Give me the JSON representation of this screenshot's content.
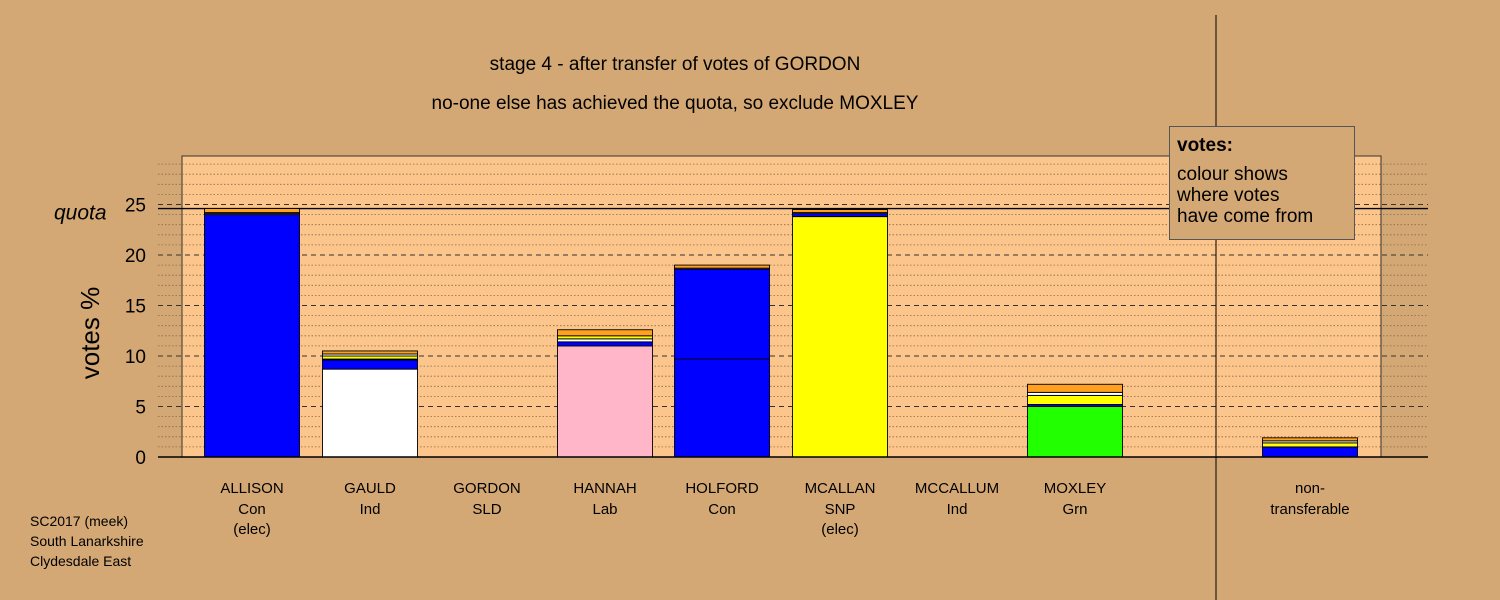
{
  "title_lines": [
    "stage 4 - after transfer of votes of GORDON",
    "no-one else has achieved the quota, so exclude MOXLEY"
  ],
  "legend": {
    "title": "votes:",
    "lines": [
      "colour shows",
      "where votes",
      "have come from"
    ]
  },
  "footer": {
    "lines": [
      "SC2017 (meek)",
      "South Lanarkshire",
      "Clydesdale East"
    ]
  },
  "colors": {
    "background": "#D4A874",
    "plot_area": "#FBC58C",
    "Con": "#0000FF",
    "Ind": "#FFFFFF",
    "Lab": "#FFB6C8",
    "SNP": "#FFFF00",
    "Grn": "#22FF00",
    "SLD": "#FFA01E",
    "nontransferable": "#0000FF"
  },
  "chart_data": {
    "type": "bar",
    "stacked": true,
    "ylabel": "votes %",
    "ylim": [
      0,
      29.5
    ],
    "yticks": [
      0,
      5,
      10,
      15,
      20,
      25
    ],
    "quota": 24.6,
    "quota_label": "quota",
    "grid": true,
    "legend_position": "top-right",
    "categories": [
      {
        "name": "ALLISON",
        "party": "Con",
        "note": "(elec)"
      },
      {
        "name": "GAULD",
        "party": "Ind",
        "note": ""
      },
      {
        "name": "GORDON",
        "party": "SLD",
        "note": ""
      },
      {
        "name": "HANNAH",
        "party": "Lab",
        "note": ""
      },
      {
        "name": "HOLFORD",
        "party": "Con",
        "note": ""
      },
      {
        "name": "MCALLAN",
        "party": "SNP",
        "note": "(elec)"
      },
      {
        "name": "MCCALLUM",
        "party": "Ind",
        "note": ""
      },
      {
        "name": "MOXLEY",
        "party": "Grn",
        "note": ""
      },
      {
        "name": "non-",
        "party": "transferable",
        "note": ""
      }
    ],
    "bars": [
      {
        "segments": [
          {
            "source": "Con",
            "value": 24.0
          },
          {
            "source": "Ind",
            "value": 0.1
          },
          {
            "source": "SNP",
            "value": 0.1
          },
          {
            "source": "SLD",
            "value": 0.4
          }
        ]
      },
      {
        "segments": [
          {
            "source": "Ind",
            "value": 8.7
          },
          {
            "source": "Con",
            "value": 0.9
          },
          {
            "source": "Con",
            "value": 0.1
          },
          {
            "source": "SNP",
            "value": 0.3
          },
          {
            "source": "Ind",
            "value": 0.2
          },
          {
            "source": "SLD",
            "value": 0.3
          }
        ]
      },
      {
        "segments": []
      },
      {
        "segments": [
          {
            "source": "Lab",
            "value": 11.0
          },
          {
            "source": "Con",
            "value": 0.4
          },
          {
            "source": "Ind",
            "value": 0.3
          },
          {
            "source": "SNP",
            "value": 0.3
          },
          {
            "source": "SLD",
            "value": 0.6
          }
        ]
      },
      {
        "segments": [
          {
            "source": "Con",
            "value": 9.7
          },
          {
            "source": "Con",
            "value": 8.9
          },
          {
            "source": "Ind",
            "value": 0.1
          },
          {
            "source": "SLD",
            "value": 0.3
          }
        ]
      },
      {
        "segments": [
          {
            "source": "SNP",
            "value": 23.8
          },
          {
            "source": "Con",
            "value": 0.3
          },
          {
            "source": "Ind",
            "value": 0.1
          },
          {
            "source": "SLD",
            "value": 0.3
          }
        ]
      },
      {
        "segments": []
      },
      {
        "segments": [
          {
            "source": "Grn",
            "value": 5.0
          },
          {
            "source": "Con",
            "value": 0.2
          },
          {
            "source": "SNP",
            "value": 0.9
          },
          {
            "source": "Ind",
            "value": 0.3
          },
          {
            "source": "SLD",
            "value": 0.8
          }
        ]
      },
      {
        "segments": [
          {
            "source": "nontransferable",
            "value": 1.0
          },
          {
            "source": "SNP",
            "value": 0.4
          },
          {
            "source": "Ind",
            "value": 0.2
          },
          {
            "source": "SLD",
            "value": 0.3
          }
        ]
      }
    ]
  }
}
